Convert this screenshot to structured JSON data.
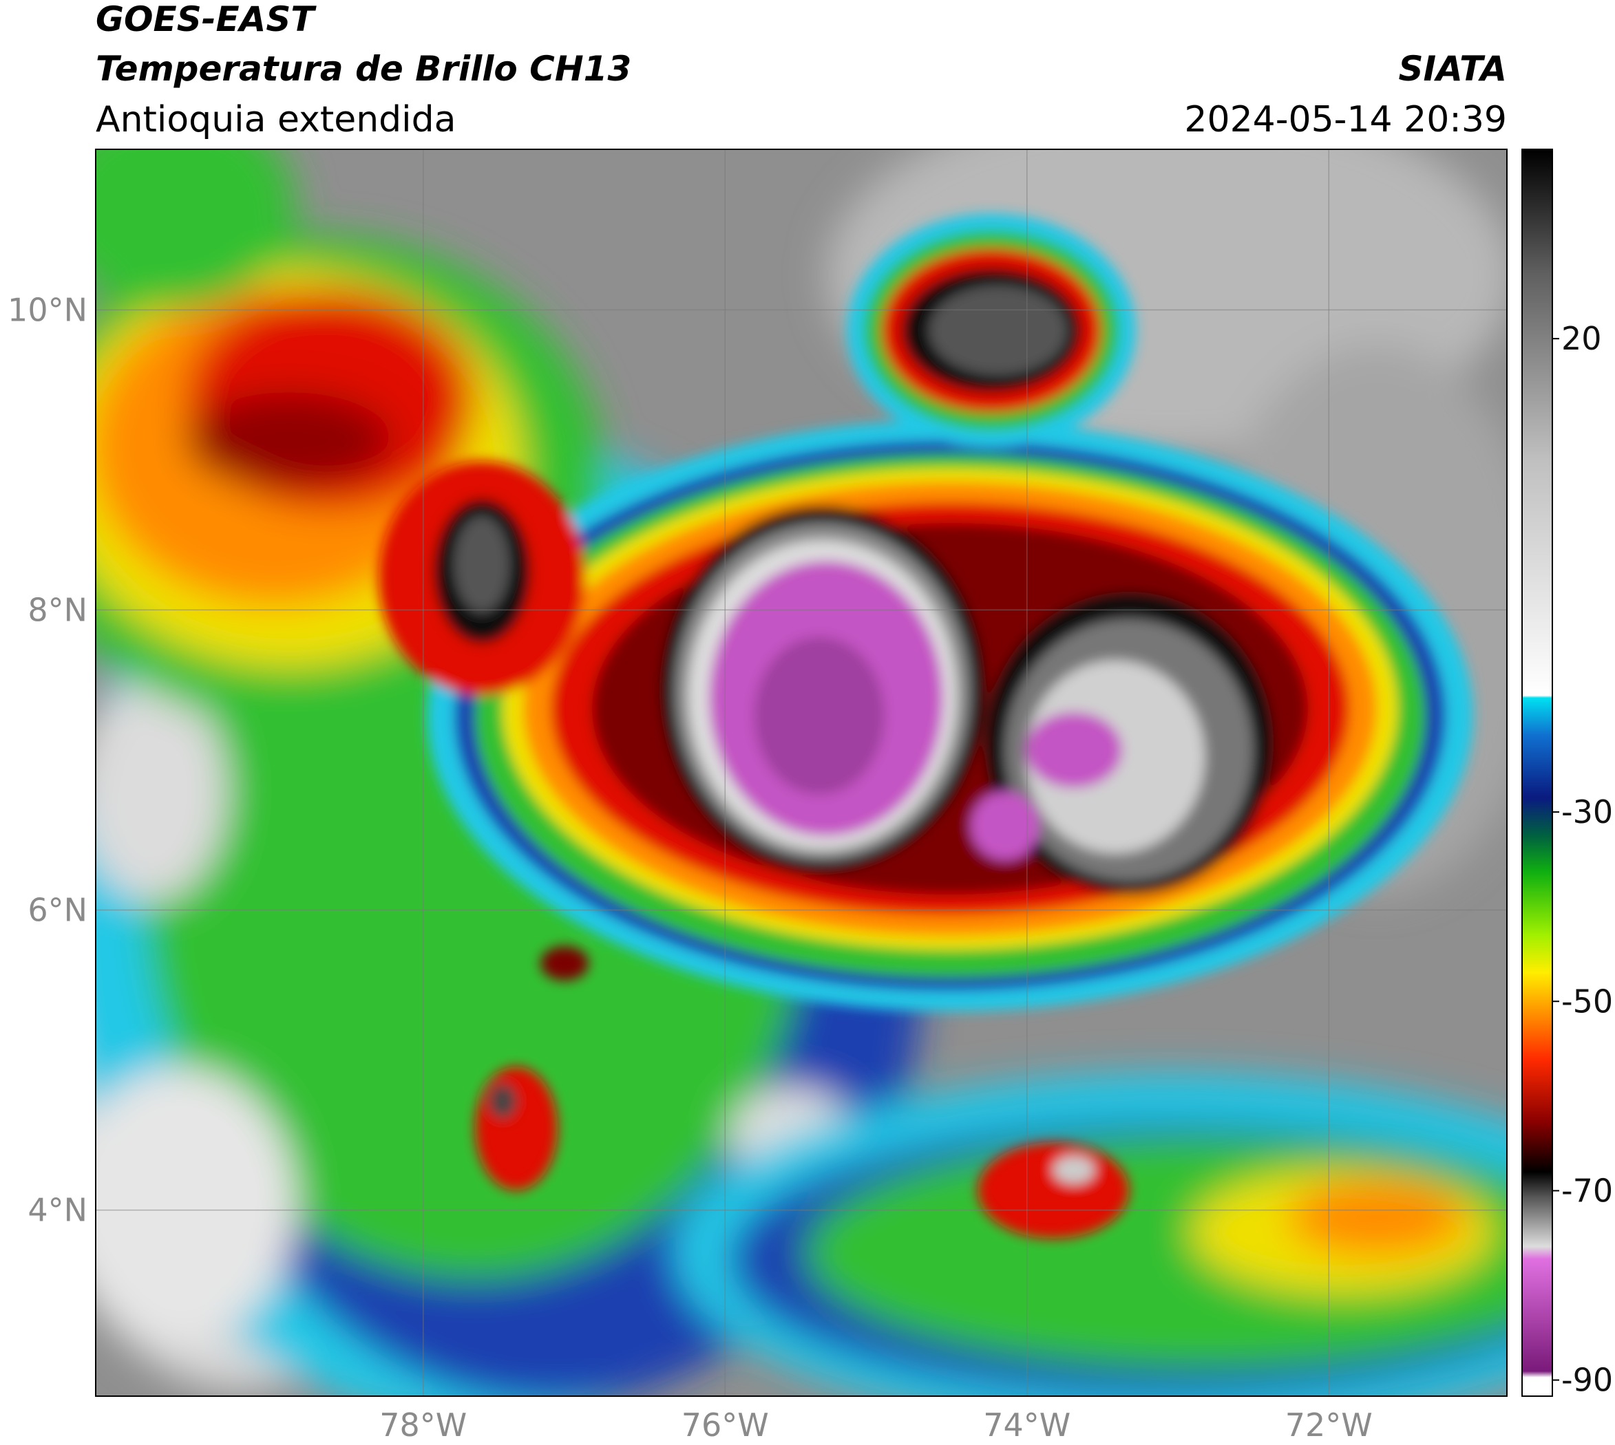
{
  "header": {
    "title": "GOES-EAST",
    "subtitle": "Temperatura de Brillo CH13",
    "region": "Antioquia extendida",
    "source": "SIATA",
    "datetime": "2024-05-14 20:39"
  },
  "map": {
    "xlim": [
      -80.17,
      -70.82
    ],
    "ylim": [
      2.76,
      11.07
    ],
    "xticks": [
      {
        "value": -78,
        "label": "78°W"
      },
      {
        "value": -76,
        "label": "76°W"
      },
      {
        "value": -74,
        "label": "74°W"
      },
      {
        "value": -72,
        "label": "72°W"
      }
    ],
    "yticks": [
      {
        "value": 4,
        "label": "4°N"
      },
      {
        "value": 6,
        "label": "6°N"
      },
      {
        "value": 8,
        "label": "8°N"
      },
      {
        "value": 10,
        "label": "10°N"
      }
    ]
  },
  "colorbar": {
    "clim": [
      -91.7,
      40
    ],
    "ticks": [
      20,
      -30,
      -50,
      -70,
      -90
    ]
  }
}
